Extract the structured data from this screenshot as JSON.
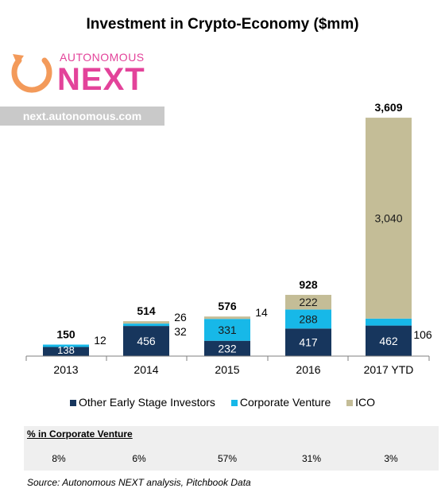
{
  "title": "Investment in Crypto-Economy ($mm)",
  "logo": {
    "top_text": "AUTONOMOUS",
    "main_text": "NEXT"
  },
  "url": "next.autonomous.com",
  "colors": {
    "other": "#17365d",
    "corporate": "#17b8e8",
    "ico": "#c4bd97"
  },
  "chart_data": {
    "type": "bar",
    "stacked": true,
    "categories": [
      "2013",
      "2014",
      "2015",
      "2016",
      "2017 YTD"
    ],
    "series": [
      {
        "name": "Other Early Stage Investors",
        "values": [
          138,
          456,
          232,
          417,
          462
        ]
      },
      {
        "name": "Corporate Venture",
        "values": [
          12,
          32,
          331,
          288,
          106
        ]
      },
      {
        "name": "ICO",
        "values": [
          0,
          26,
          14,
          222,
          3040
        ]
      }
    ],
    "labels": {
      "other": [
        "138",
        "456",
        "232",
        "417",
        "462"
      ],
      "corporate": [
        "12",
        "32",
        "331",
        "288",
        "106"
      ],
      "ico": [
        "",
        "26",
        "14",
        "222",
        "3,040"
      ]
    },
    "totals": [
      "150",
      "514",
      "576",
      "928",
      "3,609"
    ],
    "total_values": [
      150,
      514,
      576,
      928,
      3609
    ],
    "ylim": [
      0,
      3609
    ],
    "legend_position": "bottom"
  },
  "pct_corporate": {
    "title": "% in Corporate Venture",
    "values": [
      "8%",
      "6%",
      "57%",
      "31%",
      "3%"
    ]
  },
  "source": "Source: Autonomous NEXT analysis, Pitchbook Data"
}
